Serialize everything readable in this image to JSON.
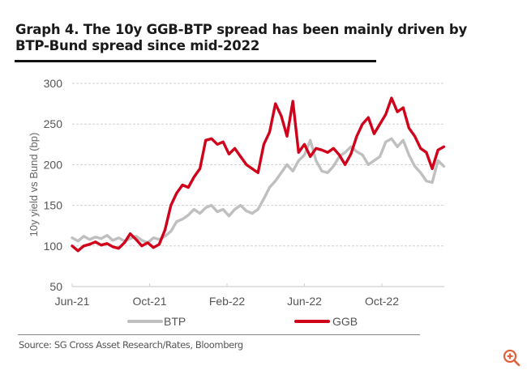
{
  "title": "Graph 4. The 10y GGB-BTP spread has been mainly driven by BTP-Bund spread since mid-2022",
  "title_line1": "Graph 4. The 10y GGB-BTP spread has been mainly driven by",
  "title_line2": "BTP-Bund spread since mid-2022",
  "source": "Source:  SG Cross Asset Research/Rates, Bloomberg",
  "zoom_icon": "zoom-in-icon",
  "colors": {
    "BTP": "#c0bfbf",
    "GGB": "#d0021b",
    "grid": "#cfcfcf",
    "zoom": "#e0623a"
  },
  "chart_data": {
    "type": "line",
    "title": "Graph 4. The 10y GGB-BTP spread has been mainly driven by BTP-Bund spread since mid-2022",
    "xlabel": "",
    "ylabel": "10y yield vs Bund (bp)",
    "ylim": [
      50,
      300
    ],
    "yticks": [
      50,
      100,
      150,
      200,
      250,
      300
    ],
    "xticks": [
      "Jun-21",
      "Oct-21",
      "Feb-22",
      "Jun-22",
      "Oct-22"
    ],
    "x_unit": "months since Jun-21",
    "xlim": [
      0,
      19.3
    ],
    "grid": true,
    "legend": {
      "position": "bottom",
      "entries": [
        "BTP",
        "GGB"
      ]
    },
    "series": [
      {
        "name": "BTP",
        "x": [
          0,
          0.3,
          0.6,
          0.9,
          1.2,
          1.5,
          1.8,
          2.1,
          2.4,
          2.7,
          3.0,
          3.3,
          3.6,
          3.9,
          4.2,
          4.5,
          4.8,
          5.1,
          5.4,
          5.7,
          6.0,
          6.3,
          6.6,
          6.9,
          7.2,
          7.5,
          7.8,
          8.1,
          8.4,
          8.7,
          9.0,
          9.3,
          9.6,
          9.9,
          10.2,
          10.5,
          10.8,
          11.1,
          11.4,
          11.7,
          12.0,
          12.3,
          12.6,
          12.9,
          13.2,
          13.5,
          13.8,
          14.1,
          14.4,
          14.7,
          15.0,
          15.3,
          15.6,
          15.9,
          16.2,
          16.5,
          16.8,
          17.1,
          17.4,
          17.7,
          18.0,
          18.3,
          18.6,
          18.9,
          19.2
        ],
        "values": [
          110,
          106,
          112,
          108,
          111,
          109,
          113,
          107,
          110,
          106,
          109,
          112,
          107,
          104,
          110,
          108,
          112,
          118,
          130,
          133,
          138,
          145,
          140,
          147,
          150,
          142,
          145,
          137,
          145,
          150,
          143,
          140,
          145,
          158,
          172,
          180,
          190,
          200,
          192,
          205,
          212,
          230,
          205,
          192,
          190,
          198,
          210,
          215,
          222,
          216,
          212,
          200,
          205,
          210,
          228,
          232,
          222,
          230,
          212,
          198,
          190,
          180,
          178,
          205,
          198
        ]
      },
      {
        "name": "GGB",
        "x": [
          0,
          0.3,
          0.6,
          0.9,
          1.2,
          1.5,
          1.8,
          2.1,
          2.4,
          2.7,
          3.0,
          3.3,
          3.6,
          3.9,
          4.2,
          4.5,
          4.8,
          5.1,
          5.4,
          5.7,
          6.0,
          6.3,
          6.6,
          6.9,
          7.2,
          7.5,
          7.8,
          8.1,
          8.4,
          8.7,
          9.0,
          9.3,
          9.6,
          9.9,
          10.2,
          10.5,
          10.8,
          11.1,
          11.4,
          11.7,
          12.0,
          12.3,
          12.6,
          12.9,
          13.2,
          13.5,
          13.8,
          14.1,
          14.4,
          14.7,
          15.0,
          15.3,
          15.6,
          15.9,
          16.2,
          16.5,
          16.8,
          17.1,
          17.4,
          17.7,
          18.0,
          18.3,
          18.6,
          18.9,
          19.2
        ],
        "values": [
          100,
          94,
          100,
          102,
          105,
          101,
          103,
          99,
          97,
          104,
          115,
          108,
          100,
          104,
          98,
          102,
          120,
          150,
          165,
          175,
          172,
          185,
          195,
          230,
          232,
          225,
          228,
          213,
          220,
          210,
          200,
          195,
          190,
          225,
          240,
          275,
          260,
          235,
          278,
          215,
          225,
          210,
          220,
          218,
          215,
          220,
          212,
          200,
          213,
          235,
          250,
          258,
          238,
          250,
          262,
          282,
          265,
          270,
          245,
          235,
          220,
          215,
          195,
          218,
          222
        ]
      }
    ]
  }
}
